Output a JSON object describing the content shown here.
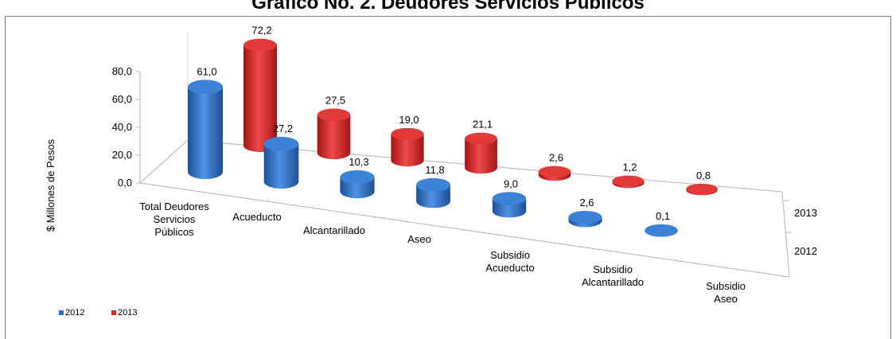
{
  "chart_data": {
    "type": "bar",
    "title": "Gráfico No. 2. Deudores Servicios Públicos",
    "ylabel": "$ Millones de Pesos",
    "ylim": [
      0,
      80
    ],
    "yticks": [
      "0,0",
      "20,0",
      "40,0",
      "60,0",
      "80,0"
    ],
    "categories": [
      [
        "Total Deudores",
        "Servicios",
        "Públicos"
      ],
      [
        "Acueducto"
      ],
      [
        "Alcantarillado"
      ],
      [
        "Aseo"
      ],
      [
        "Subsidio",
        "Acueducto"
      ],
      [
        "Subsidio",
        "Alcantarillado"
      ],
      [
        "Subsidio",
        "Aseo"
      ]
    ],
    "series": [
      {
        "name": "2012",
        "color": "#2e6fc4",
        "values": [
          61.0,
          27.2,
          10.3,
          11.8,
          9.0,
          2.6,
          0.1
        ],
        "labels": [
          "61,0",
          "27,2",
          "10,3",
          "11,8",
          "9,0",
          "2,6",
          "0,1"
        ]
      },
      {
        "name": "2013",
        "color": "#d92b2b",
        "values": [
          72.2,
          27.5,
          19.0,
          21.1,
          2.6,
          1.2,
          0.8
        ],
        "labels": [
          "72,2",
          "27,5",
          "19,0",
          "21,1",
          "2,6",
          "1,2",
          "0,8"
        ]
      }
    ],
    "depth_labels": [
      "2013",
      "2012"
    ],
    "legend_position": "bottom-left"
  }
}
